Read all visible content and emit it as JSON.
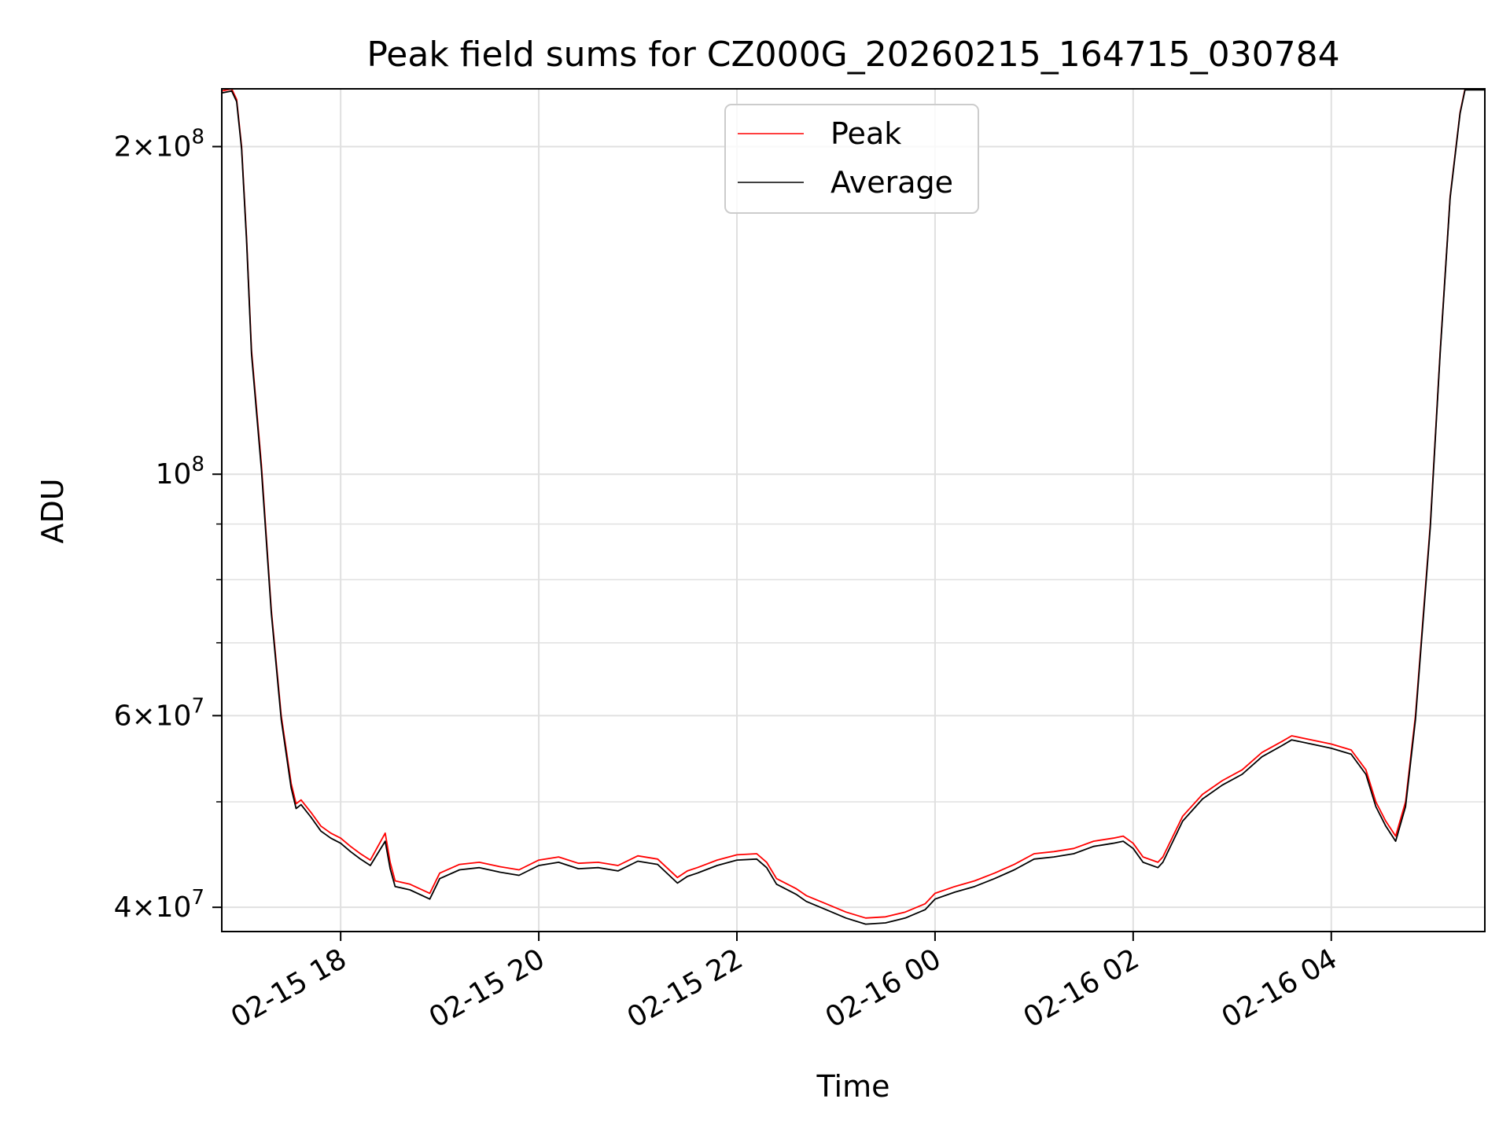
{
  "chart_data": {
    "type": "line",
    "title": "Peak field sums for CZ000G_20260215_164715_030784",
    "xlabel": "Time",
    "ylabel": "ADU",
    "yscale": "log",
    "ylim": [
      38000000,
      226000000
    ],
    "xlim_hours": [
      16.8,
      29.55
    ],
    "grid": true,
    "legend_position": "upper center",
    "colors": {
      "peak": "#ff0000",
      "average": "#000000",
      "grid": "#e0e0e0"
    },
    "x_ticks": [
      {
        "hour": 18,
        "label": "02-15 18"
      },
      {
        "hour": 20,
        "label": "02-15 20"
      },
      {
        "hour": 22,
        "label": "02-15 22"
      },
      {
        "hour": 24,
        "label": "02-16 00"
      },
      {
        "hour": 26,
        "label": "02-16 02"
      },
      {
        "hour": 28,
        "label": "02-16 04"
      }
    ],
    "y_major_ticks": [
      {
        "value": 40000000,
        "mantissa": "4",
        "exponent": "7"
      },
      {
        "value": 60000000,
        "mantissa": "6",
        "exponent": "7"
      },
      {
        "value": 100000000,
        "mantissa": "",
        "exponent": "8"
      },
      {
        "value": 200000000,
        "mantissa": "2",
        "exponent": "8"
      }
    ],
    "y_minor_ticks": [
      50000000,
      70000000,
      80000000,
      90000000
    ],
    "series": [
      {
        "name": "Peak",
        "color": "#ff0000",
        "x_hours": [
          16.8,
          16.9,
          16.95,
          17.0,
          17.05,
          17.1,
          17.2,
          17.3,
          17.4,
          17.5,
          17.55,
          17.6,
          17.7,
          17.8,
          17.9,
          18.0,
          18.1,
          18.2,
          18.3,
          18.45,
          18.5,
          18.55,
          18.7,
          18.9,
          19.0,
          19.2,
          19.4,
          19.6,
          19.8,
          20.0,
          20.2,
          20.4,
          20.6,
          20.8,
          21.0,
          21.2,
          21.4,
          21.5,
          21.6,
          21.8,
          22.0,
          22.2,
          22.3,
          22.4,
          22.6,
          22.7,
          22.9,
          23.1,
          23.3,
          23.5,
          23.7,
          23.9,
          24.0,
          24.2,
          24.4,
          24.6,
          24.8,
          25.0,
          25.2,
          25.4,
          25.6,
          25.8,
          25.9,
          26.0,
          26.1,
          26.25,
          26.3,
          26.5,
          26.7,
          26.9,
          27.1,
          27.3,
          27.5,
          27.6,
          27.8,
          28.0,
          28.2,
          28.35,
          28.45,
          28.55,
          28.65,
          28.75,
          28.85,
          29.0,
          29.1,
          29.2,
          29.3,
          29.35,
          29.45,
          29.55
        ],
        "values": [
          225000000,
          226000000,
          221000000,
          200000000,
          165000000,
          130000000,
          102000000,
          75000000,
          60000000,
          52000000,
          49800000,
          50200000,
          48900000,
          47500000,
          46800000,
          46300000,
          45500000,
          44800000,
          44200000,
          46800000,
          44000000,
          42300000,
          42000000,
          41200000,
          43000000,
          43800000,
          44000000,
          43600000,
          43300000,
          44200000,
          44500000,
          43900000,
          44000000,
          43700000,
          44600000,
          44300000,
          42600000,
          43200000,
          43500000,
          44200000,
          44700000,
          44800000,
          44000000,
          42500000,
          41600000,
          41000000,
          40300000,
          39600000,
          39100000,
          39200000,
          39600000,
          40300000,
          41200000,
          41800000,
          42300000,
          43000000,
          43800000,
          44800000,
          45000000,
          45300000,
          46000000,
          46300000,
          46500000,
          45800000,
          44500000,
          44000000,
          44500000,
          48500000,
          50800000,
          52300000,
          53500000,
          55500000,
          56800000,
          57500000,
          57000000,
          56500000,
          55800000,
          53500000,
          50000000,
          48000000,
          46500000,
          50000000,
          60000000,
          90000000,
          130000000,
          180000000,
          215000000,
          226000000,
          226000000,
          226000000
        ]
      },
      {
        "name": "Average",
        "color": "#000000",
        "x_hours": [
          16.8,
          16.9,
          16.95,
          17.0,
          17.05,
          17.1,
          17.2,
          17.3,
          17.4,
          17.5,
          17.55,
          17.6,
          17.7,
          17.8,
          17.9,
          18.0,
          18.1,
          18.2,
          18.3,
          18.45,
          18.5,
          18.55,
          18.7,
          18.9,
          19.0,
          19.2,
          19.4,
          19.6,
          19.8,
          20.0,
          20.2,
          20.4,
          20.6,
          20.8,
          21.0,
          21.2,
          21.4,
          21.5,
          21.6,
          21.8,
          22.0,
          22.2,
          22.3,
          22.4,
          22.6,
          22.7,
          22.9,
          23.1,
          23.3,
          23.5,
          23.7,
          23.9,
          24.0,
          24.2,
          24.4,
          24.6,
          24.8,
          25.0,
          25.2,
          25.4,
          25.6,
          25.8,
          25.9,
          26.0,
          26.1,
          26.25,
          26.3,
          26.5,
          26.7,
          26.9,
          27.1,
          27.3,
          27.5,
          27.6,
          27.8,
          28.0,
          28.2,
          28.35,
          28.45,
          28.55,
          28.65,
          28.75,
          28.85,
          29.0,
          29.1,
          29.2,
          29.3,
          29.35,
          29.45,
          29.55
        ],
        "values": [
          224000000,
          225000000,
          220000000,
          199000000,
          164000000,
          129000000,
          101000000,
          74500000,
          59500000,
          51500000,
          49300000,
          49700000,
          48400000,
          47000000,
          46300000,
          45800000,
          45000000,
          44300000,
          43700000,
          46000000,
          43400000,
          41800000,
          41500000,
          40700000,
          42500000,
          43300000,
          43500000,
          43100000,
          42800000,
          43700000,
          44000000,
          43400000,
          43500000,
          43200000,
          44100000,
          43800000,
          42100000,
          42700000,
          43000000,
          43700000,
          44200000,
          44300000,
          43500000,
          42000000,
          41100000,
          40500000,
          39800000,
          39100000,
          38600000,
          38700000,
          39100000,
          39800000,
          40700000,
          41300000,
          41800000,
          42500000,
          43300000,
          44300000,
          44500000,
          44800000,
          45500000,
          45800000,
          46000000,
          45300000,
          44000000,
          43500000,
          44000000,
          48000000,
          50300000,
          51800000,
          53000000,
          55000000,
          56300000,
          57000000,
          56500000,
          56000000,
          55300000,
          53000000,
          49500000,
          47500000,
          46000000,
          49500000,
          59500000,
          89500000,
          129500000,
          179500000,
          214500000,
          225500000,
          225500000,
          225500000
        ]
      }
    ]
  }
}
